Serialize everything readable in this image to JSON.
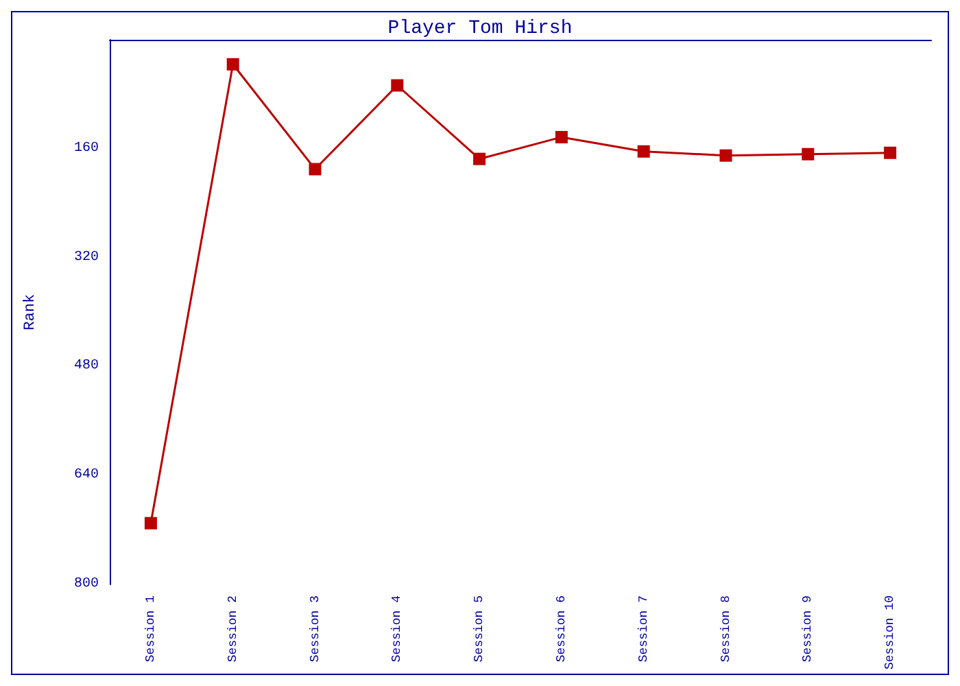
{
  "chart_data": {
    "type": "line",
    "title": "Player Tom Hirsh",
    "ylabel": "Rank",
    "categories": [
      "Session 1",
      "Session 2",
      "Session 3",
      "Session 4",
      "Session 5",
      "Session 6",
      "Session 7",
      "Session 8",
      "Session 9",
      "Session 10"
    ],
    "series": [
      {
        "color": "#bb0000",
        "values": [
          710,
          36,
          190,
          67,
          175,
          143,
          164,
          170,
          168,
          166
        ]
      }
    ],
    "ylim": [
      800,
      0
    ],
    "yticks": [
      160,
      320,
      480,
      640,
      800
    ],
    "grid": false,
    "marker": "square",
    "line_style": "solid"
  }
}
